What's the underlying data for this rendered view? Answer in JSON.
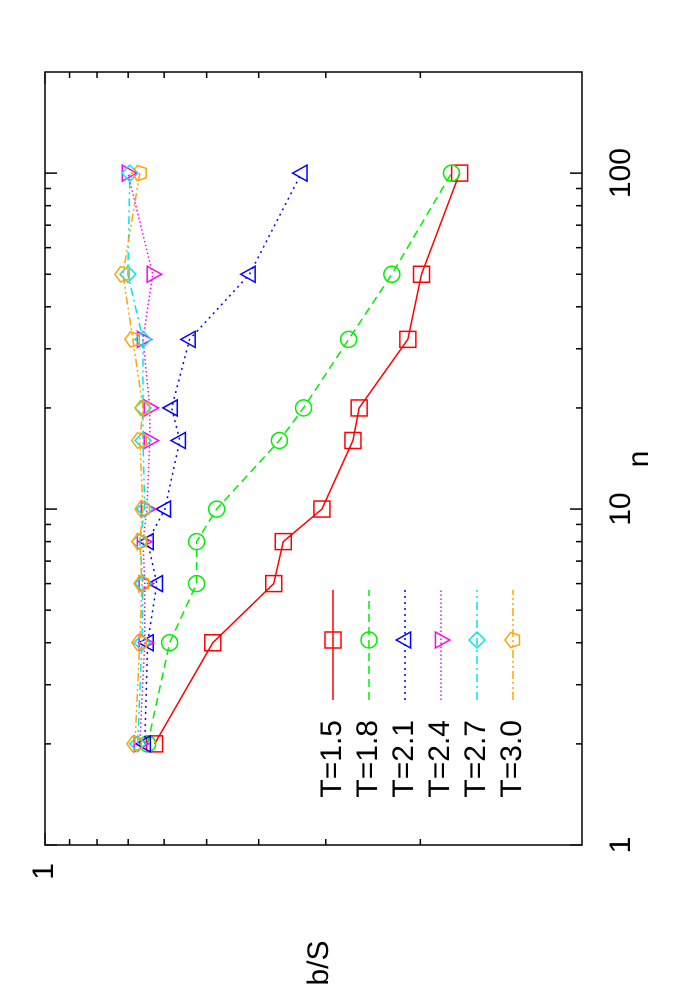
{
  "chart_data": {
    "type": "line",
    "x_label": "n",
    "y_label": "b/S",
    "xscale": "log",
    "yscale": "log",
    "xlim": [
      1,
      200
    ],
    "ylim": [
      0.1,
      1
    ],
    "xticks": [
      1,
      10,
      100
    ],
    "yticks": [
      1
    ],
    "xminorticks": [
      2,
      3,
      4,
      5,
      6,
      7,
      8,
      9,
      20,
      30,
      40,
      50,
      60,
      70,
      80,
      90
    ],
    "yminorticks": [
      0.2,
      0.3,
      0.4,
      0.5,
      0.6,
      0.7,
      0.8,
      0.9
    ],
    "legend": "bottom left",
    "x": [
      2,
      4,
      6,
      8,
      10,
      16,
      20,
      32,
      50,
      100
    ],
    "series": [
      {
        "name": "T=1.5",
        "color": "#ff0000",
        "dash": "solid",
        "marker": "square",
        "values": [
          0.625,
          0.487,
          0.375,
          0.36,
          0.305,
          0.267,
          0.26,
          0.211,
          0.199,
          0.169
        ]
      },
      {
        "name": "T=1.8",
        "color": "#00ee00",
        "dash": "dashed",
        "marker": "circle",
        "values": [
          0.644,
          0.586,
          0.522,
          0.522,
          0.479,
          0.366,
          0.33,
          0.272,
          0.226,
          0.175
        ]
      },
      {
        "name": "T=2.1",
        "color": "#0000ff",
        "dash": "dotted",
        "marker": "triangle-up",
        "values": [
          0.652,
          0.644,
          0.619,
          0.644,
          0.598,
          0.561,
          0.581,
          0.538,
          0.416,
          0.333
        ]
      },
      {
        "name": "T=2.4",
        "color": "#ff00ff",
        "dash": "fine-dotted",
        "marker": "triangle-down",
        "values": [
          0.666,
          0.652,
          0.652,
          0.657,
          0.646,
          0.638,
          0.638,
          0.657,
          0.63,
          0.701
        ]
      },
      {
        "name": "T=2.7",
        "color": "#00e5ee",
        "dash": "dash-dot",
        "marker": "diamond",
        "values": [
          0.672,
          0.66,
          0.657,
          0.666,
          0.652,
          0.657,
          0.657,
          0.657,
          0.701,
          0.695
        ]
      },
      {
        "name": "T=3.0",
        "color": "#ffa500",
        "dash": "dash-dot-dot",
        "marker": "pentagon",
        "values": [
          0.68,
          0.666,
          0.66,
          0.666,
          0.657,
          0.666,
          0.657,
          0.686,
          0.716,
          0.666
        ]
      }
    ]
  }
}
